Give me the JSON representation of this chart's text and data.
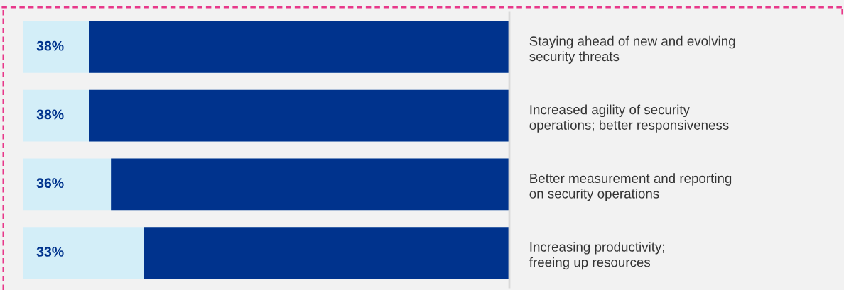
{
  "chart_data": {
    "type": "bar",
    "orientation": "horizontal",
    "categories": [
      "Staying ahead of new and evolving\nsecurity threats",
      "Increased agility of security\noperations; better responsiveness",
      "Better measurement and reporting\non security operations",
      "Increasing productivity;\nfreeing up resources"
    ],
    "values": [
      38,
      38,
      36,
      33
    ],
    "value_labels": [
      "38%",
      "38%",
      "36%",
      "33%"
    ],
    "color": "#00338d",
    "grid": false,
    "legend": false
  }
}
